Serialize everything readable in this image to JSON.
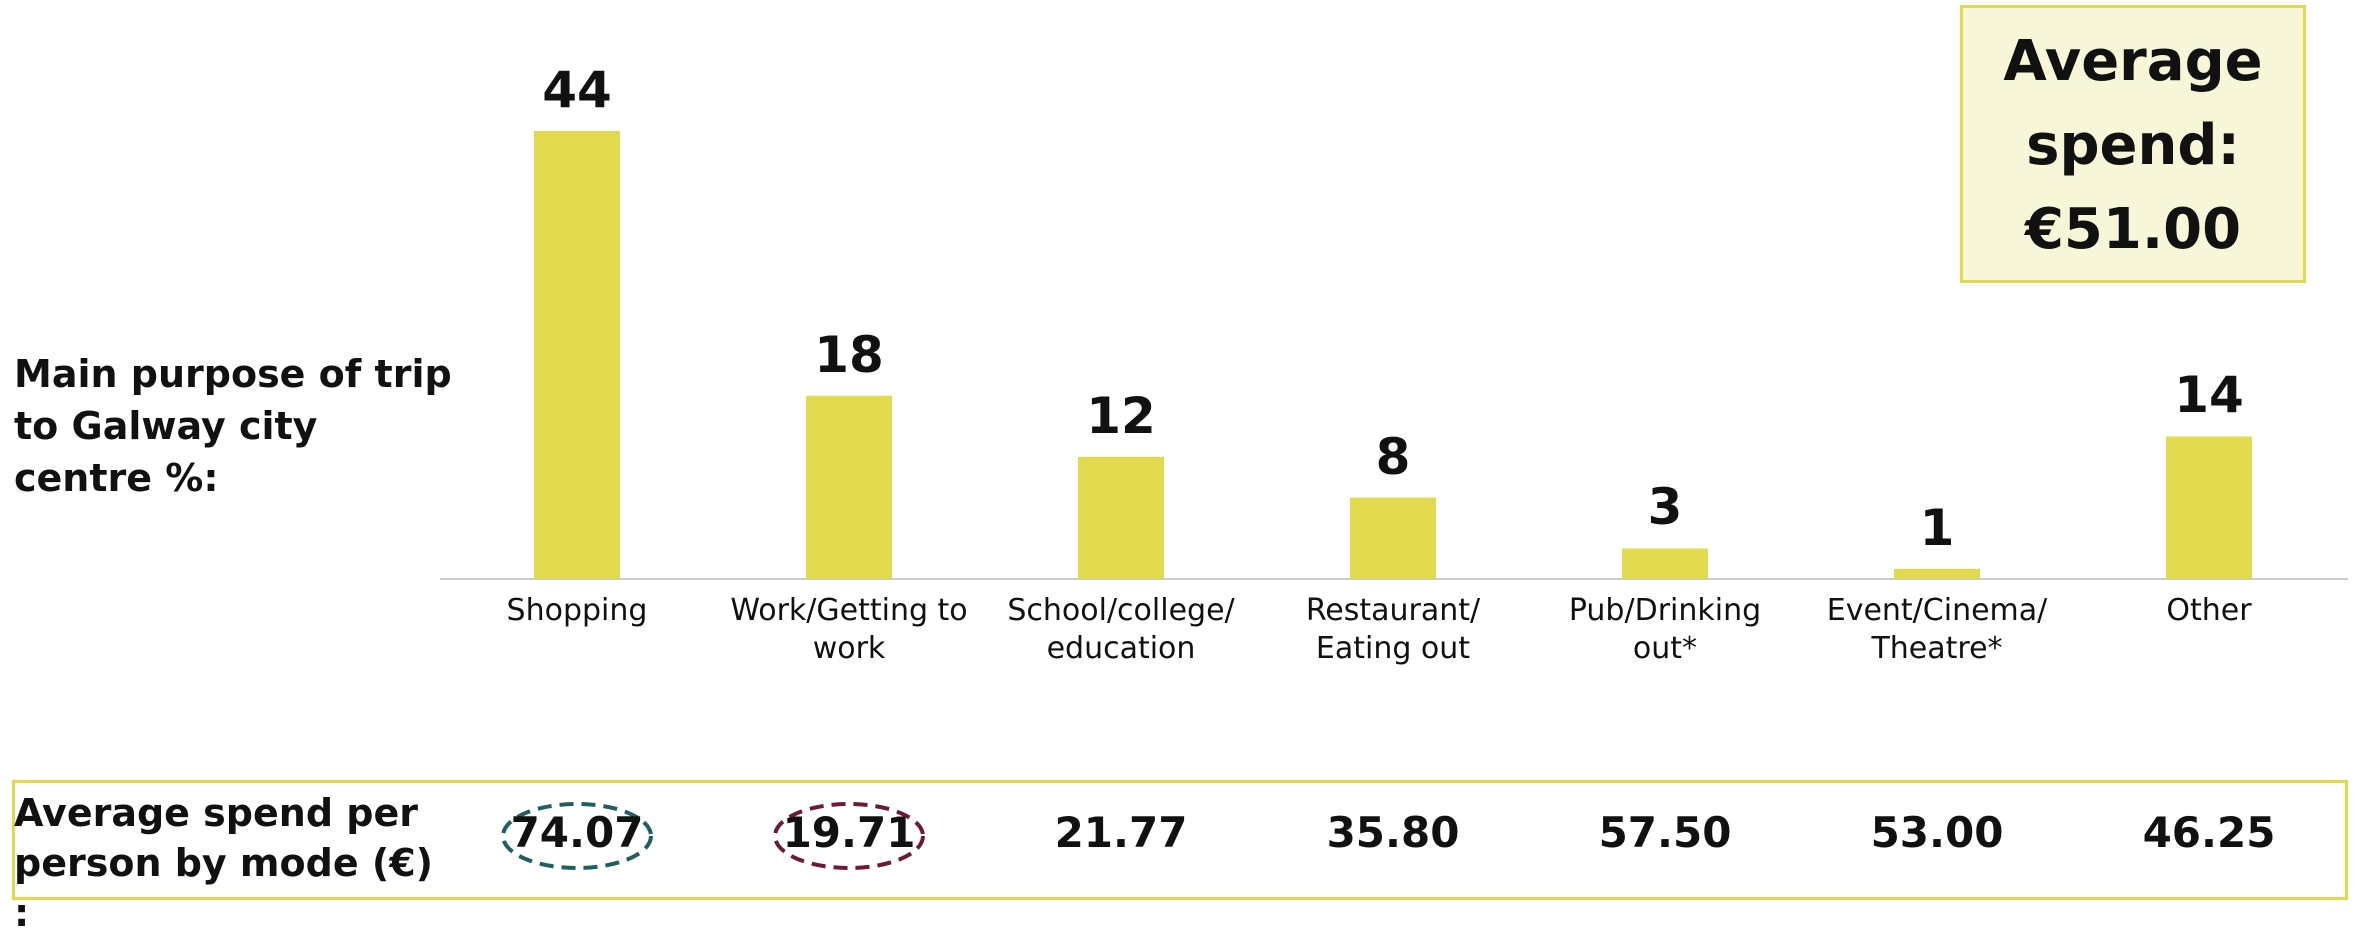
{
  "chart_data": {
    "type": "bar",
    "y_label": "Main purpose of trip to Galway city centre %:",
    "categories": [
      "Shopping",
      "Work/Getting to work",
      "School/college/ education",
      "Restaurant/ Eating out",
      "Pub/Drinking out*",
      "Event/Cinema/ Theatre*",
      "Other"
    ],
    "values": [
      44,
      18,
      12,
      8,
      3,
      1,
      14
    ],
    "color": "#e2da4e"
  },
  "average_box": {
    "text": "Average spend: €51.00"
  },
  "spend_row": {
    "label": "Average spend per person by mode (€) :",
    "values": [
      "74.07",
      "19.71",
      "21.77",
      "35.80",
      "57.50",
      "53.00",
      "46.25"
    ]
  }
}
